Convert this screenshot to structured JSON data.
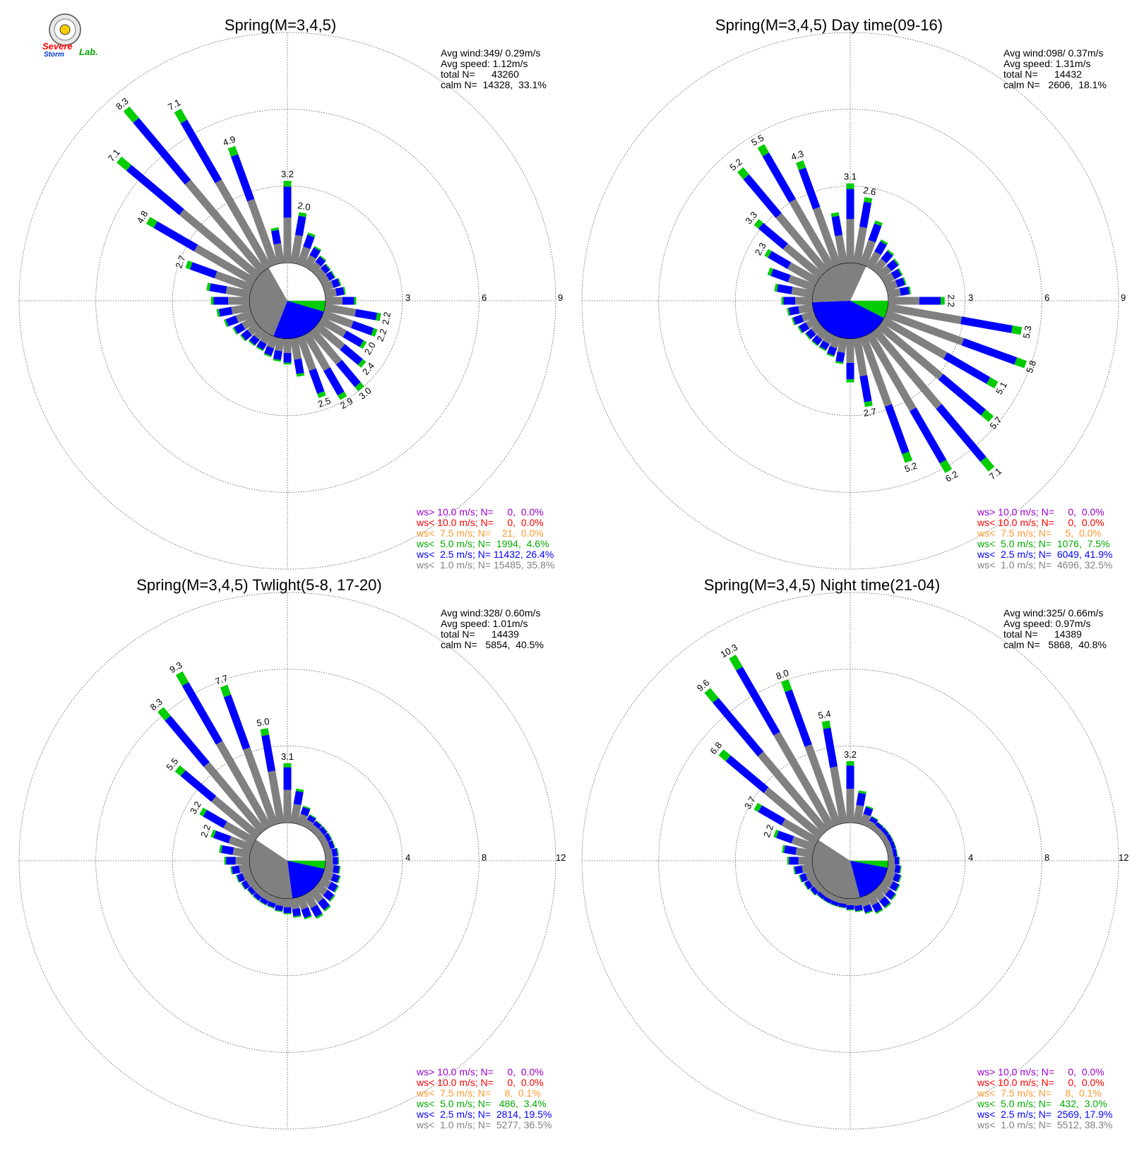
{
  "logo": {
    "text_a": "Severe",
    "text_b": "Storm",
    "text_c": "Lab."
  },
  "panels": [
    {
      "title": "Spring(M=3,4,5)",
      "stats": [
        "Avg wind:349/ 0.29m/s",
        "Avg speed: 1.12m/s",
        "total N=      43260",
        "calm N=  14328,  33.1%"
      ],
      "ring_labels": [
        "3",
        "6",
        "9"
      ],
      "legend": [
        {
          "text": "ws> 10.0 m/s; N=     0,  0.0%",
          "color": "#9900cc"
        },
        {
          "text": "ws< 10.0 m/s; N=     0,  0.0%",
          "color": "#ff0000"
        },
        {
          "text": "ws<  7.5 m/s; N=    21,  0.0%",
          "color": "#ff9933"
        },
        {
          "text": "ws<  5.0 m/s; N=  1994,  4.6%",
          "color": "#00aa00"
        },
        {
          "text": "ws<  2.5 m/s; N= 11432, 26.4%",
          "color": "#0000ff"
        },
        {
          "text": "ws<  1.0 m/s; N= 15485, 35.8%",
          "color": "#808080"
        }
      ]
    },
    {
      "title": "Spring(M=3,4,5) Day time(09-16)",
      "stats": [
        "Avg wind:098/ 0.37m/s",
        "Avg speed: 1.31m/s",
        "total N=      14432",
        "calm N=   2606,  18.1%"
      ],
      "ring_labels": [
        "3",
        "6",
        "9"
      ],
      "legend": [
        {
          "text": "ws> 10.0 m/s; N=     0,  0.0%",
          "color": "#9900cc"
        },
        {
          "text": "ws< 10.0 m/s; N=     0,  0.0%",
          "color": "#ff0000"
        },
        {
          "text": "ws<  7.5 m/s; N=     5,  0.0%",
          "color": "#ff9933"
        },
        {
          "text": "ws<  5.0 m/s; N=  1076,  7.5%",
          "color": "#00aa00"
        },
        {
          "text": "ws<  2.5 m/s; N=  6049, 41.9%",
          "color": "#0000ff"
        },
        {
          "text": "ws<  1.0 m/s; N=  4696, 32.5%",
          "color": "#808080"
        }
      ]
    },
    {
      "title": "Spring(M=3,4,5) Twlight(5-8, 17-20)",
      "stats": [
        "Avg wind:328/ 0.60m/s",
        "Avg speed: 1.01m/s",
        "total N=      14439",
        "calm N=   5854,  40.5%"
      ],
      "ring_labels": [
        "4",
        "8",
        "12"
      ],
      "legend": [
        {
          "text": "ws> 10.0 m/s; N=     0,  0.0%",
          "color": "#9900cc"
        },
        {
          "text": "ws< 10.0 m/s; N=     0,  0.0%",
          "color": "#ff0000"
        },
        {
          "text": "ws<  7.5 m/s; N=     8,  0.1%",
          "color": "#ff9933"
        },
        {
          "text": "ws<  5.0 m/s; N=   486,  3.4%",
          "color": "#00aa00"
        },
        {
          "text": "ws<  2.5 m/s; N=  2814, 19.5%",
          "color": "#0000ff"
        },
        {
          "text": "ws<  1.0 m/s; N=  5277, 36.5%",
          "color": "#808080"
        }
      ]
    },
    {
      "title": "Spring(M=3,4,5) Night time(21-04)",
      "stats": [
        "Avg wind:325/ 0.66m/s",
        "Avg speed: 0.97m/s",
        "total N=      14389",
        "calm N=   5868,  40.8%"
      ],
      "ring_labels": [
        "4",
        "8",
        "12"
      ],
      "legend": [
        {
          "text": "ws> 10.0 m/s; N=     0,  0.0%",
          "color": "#9900cc"
        },
        {
          "text": "ws< 10.0 m/s; N=     0,  0.0%",
          "color": "#ff0000"
        },
        {
          "text": "ws<  7.5 m/s; N=     8,  0.1%",
          "color": "#ff9933"
        },
        {
          "text": "ws<  5.0 m/s; N=   432,  3.0%",
          "color": "#00aa00"
        },
        {
          "text": "ws<  2.5 m/s; N=  2569, 17.9%",
          "color": "#0000ff"
        },
        {
          "text": "ws<  1.0 m/s; N=  5512, 38.3%",
          "color": "#808080"
        }
      ]
    }
  ],
  "chart_data": [
    {
      "type": "wind-rose",
      "title": "Spring(M=3,4,5)",
      "rmax": 9,
      "rings": [
        3,
        6,
        9
      ],
      "calm_pct": 33.1,
      "pie_percent": {
        "gray": 35.8,
        "blue": 26.4,
        "green": 4.6
      },
      "series_colors": {
        "gray": "#808080",
        "blue": "#0000ff",
        "green": "#00cc00"
      },
      "direction_step_deg": 10,
      "bars": [
        {
          "dir": 0,
          "value": 3.2
        },
        {
          "dir": 10,
          "value": 2.0
        },
        {
          "dir": 20,
          "value": 1.3
        },
        {
          "dir": 30,
          "value": 0.9
        },
        {
          "dir": 40,
          "value": 0.7
        },
        {
          "dir": 50,
          "value": 0.6
        },
        {
          "dir": 60,
          "value": 0.6
        },
        {
          "dir": 70,
          "value": 0.7
        },
        {
          "dir": 80,
          "value": 0.8
        },
        {
          "dir": 90,
          "value": 1.2
        },
        {
          "dir": 100,
          "value": 2.2
        },
        {
          "dir": 110,
          "value": 2.2
        },
        {
          "dir": 120,
          "value": 2.0
        },
        {
          "dir": 130,
          "value": 2.4
        },
        {
          "dir": 140,
          "value": 3.0
        },
        {
          "dir": 150,
          "value": 2.9
        },
        {
          "dir": 160,
          "value": 2.5
        },
        {
          "dir": 170,
          "value": 1.5
        },
        {
          "dir": 180,
          "value": 1.0
        },
        {
          "dir": 190,
          "value": 0.9
        },
        {
          "dir": 200,
          "value": 0.8
        },
        {
          "dir": 210,
          "value": 0.7
        },
        {
          "dir": 220,
          "value": 0.7
        },
        {
          "dir": 230,
          "value": 0.8
        },
        {
          "dir": 240,
          "value": 0.9
        },
        {
          "dir": 250,
          "value": 1.1
        },
        {
          "dir": 260,
          "value": 1.3
        },
        {
          "dir": 270,
          "value": 1.5
        },
        {
          "dir": 280,
          "value": 1.7
        },
        {
          "dir": 290,
          "value": 2.7
        },
        {
          "dir": 300,
          "value": 4.8
        },
        {
          "dir": 310,
          "value": 7.1
        },
        {
          "dir": 320,
          "value": 8.3
        },
        {
          "dir": 330,
          "value": 7.1
        },
        {
          "dir": 340,
          "value": 4.9
        },
        {
          "dir": 350,
          "value": 1.4
        }
      ],
      "labels": [
        {
          "dir": 0,
          "text": "3.2"
        },
        {
          "dir": 10,
          "text": "2.0"
        },
        {
          "dir": 100,
          "text": "2.2"
        },
        {
          "dir": 110,
          "text": "2.2"
        },
        {
          "dir": 120,
          "text": "2.0"
        },
        {
          "dir": 130,
          "text": "2.4"
        },
        {
          "dir": 140,
          "text": "3.0"
        },
        {
          "dir": 150,
          "text": "2.9"
        },
        {
          "dir": 160,
          "text": "2.5"
        },
        {
          "dir": 290,
          "text": "2.7"
        },
        {
          "dir": 300,
          "text": "4.8"
        },
        {
          "dir": 310,
          "text": "7.1"
        },
        {
          "dir": 320,
          "text": "8.3"
        },
        {
          "dir": 330,
          "text": "7.1"
        },
        {
          "dir": 340,
          "text": "4.9"
        }
      ]
    },
    {
      "type": "wind-rose",
      "title": "Spring(M=3,4,5) Day time(09-16)",
      "rmax": 9,
      "rings": [
        3,
        6,
        9
      ],
      "calm_pct": 18.1,
      "pie_percent": {
        "gray": 32.5,
        "blue": 41.9,
        "green": 7.5
      },
      "series_colors": {
        "gray": "#808080",
        "blue": "#0000ff",
        "green": "#00cc00"
      },
      "direction_step_deg": 10,
      "bars": [
        {
          "dir": 0,
          "value": 3.1
        },
        {
          "dir": 10,
          "value": 2.6
        },
        {
          "dir": 20,
          "value": 1.8
        },
        {
          "dir": 30,
          "value": 1.2
        },
        {
          "dir": 40,
          "value": 1.0
        },
        {
          "dir": 50,
          "value": 0.9
        },
        {
          "dir": 60,
          "value": 0.8
        },
        {
          "dir": 70,
          "value": 0.8
        },
        {
          "dir": 80,
          "value": 0.9
        },
        {
          "dir": 90,
          "value": 2.2
        },
        {
          "dir": 100,
          "value": 5.3
        },
        {
          "dir": 110,
          "value": 5.8
        },
        {
          "dir": 120,
          "value": 5.1
        },
        {
          "dir": 130,
          "value": 5.7
        },
        {
          "dir": 140,
          "value": 7.1
        },
        {
          "dir": 150,
          "value": 6.2
        },
        {
          "dir": 160,
          "value": 5.2
        },
        {
          "dir": 170,
          "value": 2.7
        },
        {
          "dir": 180,
          "value": 1.7
        },
        {
          "dir": 190,
          "value": 1.0
        },
        {
          "dir": 200,
          "value": 0.8
        },
        {
          "dir": 210,
          "value": 0.7
        },
        {
          "dir": 220,
          "value": 0.7
        },
        {
          "dir": 230,
          "value": 0.7
        },
        {
          "dir": 240,
          "value": 0.8
        },
        {
          "dir": 250,
          "value": 0.9
        },
        {
          "dir": 260,
          "value": 1.0
        },
        {
          "dir": 270,
          "value": 1.2
        },
        {
          "dir": 280,
          "value": 1.5
        },
        {
          "dir": 290,
          "value": 1.9
        },
        {
          "dir": 300,
          "value": 2.3
        },
        {
          "dir": 310,
          "value": 3.3
        },
        {
          "dir": 320,
          "value": 5.2
        },
        {
          "dir": 330,
          "value": 5.5
        },
        {
          "dir": 340,
          "value": 4.3
        },
        {
          "dir": 350,
          "value": 2.0
        }
      ],
      "labels": [
        {
          "dir": 0,
          "text": "3.1"
        },
        {
          "dir": 10,
          "text": "2.6"
        },
        {
          "dir": 90,
          "text": "2.2"
        },
        {
          "dir": 100,
          "text": "5.3"
        },
        {
          "dir": 110,
          "text": "5.8"
        },
        {
          "dir": 120,
          "text": "5.1"
        },
        {
          "dir": 130,
          "text": "5.7"
        },
        {
          "dir": 140,
          "text": "7.1"
        },
        {
          "dir": 150,
          "text": "6.2"
        },
        {
          "dir": 160,
          "text": "5.2"
        },
        {
          "dir": 170,
          "text": "2.7"
        },
        {
          "dir": 300,
          "text": "2.3"
        },
        {
          "dir": 310,
          "text": "3.3"
        },
        {
          "dir": 320,
          "text": "5.2"
        },
        {
          "dir": 330,
          "text": "5.5"
        },
        {
          "dir": 340,
          "text": "4.3"
        }
      ]
    },
    {
      "type": "wind-rose",
      "title": "Spring(M=3,4,5) Twlight(5-8, 17-20)",
      "rmax": 12,
      "rings": [
        4,
        8,
        12
      ],
      "calm_pct": 40.5,
      "pie_percent": {
        "gray": 36.5,
        "blue": 19.5,
        "green": 3.4
      },
      "series_colors": {
        "gray": "#808080",
        "blue": "#0000ff",
        "green": "#00cc00"
      },
      "direction_step_deg": 10,
      "bars": [
        {
          "dir": 0,
          "value": 3.1
        },
        {
          "dir": 10,
          "value": 1.8
        },
        {
          "dir": 20,
          "value": 1.0
        },
        {
          "dir": 30,
          "value": 0.7
        },
        {
          "dir": 40,
          "value": 0.6
        },
        {
          "dir": 50,
          "value": 0.6
        },
        {
          "dir": 60,
          "value": 0.6
        },
        {
          "dir": 70,
          "value": 0.6
        },
        {
          "dir": 80,
          "value": 0.7
        },
        {
          "dir": 90,
          "value": 0.7
        },
        {
          "dir": 100,
          "value": 0.8
        },
        {
          "dir": 110,
          "value": 0.9
        },
        {
          "dir": 120,
          "value": 1.0
        },
        {
          "dir": 130,
          "value": 1.1
        },
        {
          "dir": 140,
          "value": 1.3
        },
        {
          "dir": 150,
          "value": 1.4
        },
        {
          "dir": 160,
          "value": 1.2
        },
        {
          "dir": 170,
          "value": 1.0
        },
        {
          "dir": 180,
          "value": 0.8
        },
        {
          "dir": 190,
          "value": 0.7
        },
        {
          "dir": 200,
          "value": 0.6
        },
        {
          "dir": 210,
          "value": 0.6
        },
        {
          "dir": 220,
          "value": 0.6
        },
        {
          "dir": 230,
          "value": 0.6
        },
        {
          "dir": 240,
          "value": 0.7
        },
        {
          "dir": 250,
          "value": 0.8
        },
        {
          "dir": 260,
          "value": 1.0
        },
        {
          "dir": 270,
          "value": 1.3
        },
        {
          "dir": 280,
          "value": 1.6
        },
        {
          "dir": 290,
          "value": 2.2
        },
        {
          "dir": 300,
          "value": 3.2
        },
        {
          "dir": 310,
          "value": 5.5
        },
        {
          "dir": 320,
          "value": 8.3
        },
        {
          "dir": 330,
          "value": 9.3
        },
        {
          "dir": 340,
          "value": 7.7
        },
        {
          "dir": 350,
          "value": 5.0
        }
      ],
      "labels": [
        {
          "dir": 0,
          "text": "3.1"
        },
        {
          "dir": 290,
          "text": "2.2"
        },
        {
          "dir": 300,
          "text": "3.2"
        },
        {
          "dir": 310,
          "text": "5.5"
        },
        {
          "dir": 320,
          "text": "8.3"
        },
        {
          "dir": 330,
          "text": "9.3"
        },
        {
          "dir": 340,
          "text": "7.7"
        },
        {
          "dir": 350,
          "text": "5.0"
        }
      ]
    },
    {
      "type": "wind-rose",
      "title": "Spring(M=3,4,5) Night time(21-04)",
      "rmax": 12,
      "rings": [
        4,
        8,
        12
      ],
      "calm_pct": 40.8,
      "pie_percent": {
        "gray": 38.3,
        "blue": 17.9,
        "green": 3.0
      },
      "series_colors": {
        "gray": "#808080",
        "blue": "#0000ff",
        "green": "#00cc00"
      },
      "direction_step_deg": 10,
      "bars": [
        {
          "dir": 0,
          "value": 3.2
        },
        {
          "dir": 10,
          "value": 1.7
        },
        {
          "dir": 20,
          "value": 1.0
        },
        {
          "dir": 30,
          "value": 0.6
        },
        {
          "dir": 40,
          "value": 0.5
        },
        {
          "dir": 50,
          "value": 0.5
        },
        {
          "dir": 60,
          "value": 0.5
        },
        {
          "dir": 70,
          "value": 0.5
        },
        {
          "dir": 80,
          "value": 0.5
        },
        {
          "dir": 90,
          "value": 0.6
        },
        {
          "dir": 100,
          "value": 0.7
        },
        {
          "dir": 110,
          "value": 0.8
        },
        {
          "dir": 120,
          "value": 0.9
        },
        {
          "dir": 130,
          "value": 1.0
        },
        {
          "dir": 140,
          "value": 1.1
        },
        {
          "dir": 150,
          "value": 1.1
        },
        {
          "dir": 160,
          "value": 0.9
        },
        {
          "dir": 170,
          "value": 0.7
        },
        {
          "dir": 180,
          "value": 0.6
        },
        {
          "dir": 190,
          "value": 0.5
        },
        {
          "dir": 200,
          "value": 0.5
        },
        {
          "dir": 210,
          "value": 0.5
        },
        {
          "dir": 220,
          "value": 0.5
        },
        {
          "dir": 230,
          "value": 0.6
        },
        {
          "dir": 240,
          "value": 0.7
        },
        {
          "dir": 250,
          "value": 0.8
        },
        {
          "dir": 260,
          "value": 1.0
        },
        {
          "dir": 270,
          "value": 1.3
        },
        {
          "dir": 280,
          "value": 1.6
        },
        {
          "dir": 290,
          "value": 2.2
        },
        {
          "dir": 300,
          "value": 3.7
        },
        {
          "dir": 310,
          "value": 6.8
        },
        {
          "dir": 320,
          "value": 9.6
        },
        {
          "dir": 330,
          "value": 10.3
        },
        {
          "dir": 340,
          "value": 8.0
        },
        {
          "dir": 350,
          "value": 5.4
        }
      ],
      "labels": [
        {
          "dir": 0,
          "text": "3.2"
        },
        {
          "dir": 290,
          "text": "2.2"
        },
        {
          "dir": 300,
          "text": "3.7"
        },
        {
          "dir": 310,
          "text": "6.8"
        },
        {
          "dir": 320,
          "text": "9.6"
        },
        {
          "dir": 330,
          "text": "10.3"
        },
        {
          "dir": 340,
          "text": "8.0"
        },
        {
          "dir": 350,
          "text": "5.4"
        }
      ]
    }
  ]
}
